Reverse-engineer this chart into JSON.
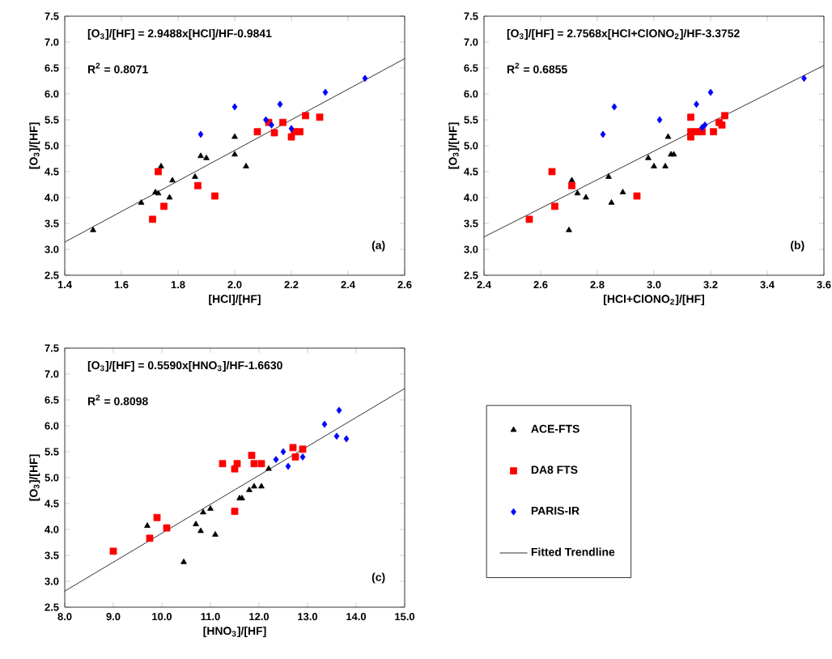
{
  "chart_data": [
    {
      "type": "scatter",
      "xlabel": "[HCl]/[HF]",
      "ylabel": "[O$_{3}$]/[HF]",
      "xlim": [
        1.4,
        2.6
      ],
      "ylim": [
        2.5,
        7.5
      ],
      "xticks": [
        1.4,
        1.6,
        1.8,
        {
          "value": 2.0,
          "label": "2.0"
        },
        2.2,
        2.4,
        2.6
      ],
      "yticks": [
        2.5,
        {
          "value": 3.0,
          "label": "3.0"
        },
        3.5,
        {
          "value": 4.0,
          "label": "4.0"
        },
        4.5,
        {
          "value": 5.0,
          "label": "5.0"
        },
        5.5,
        {
          "value": 6.0,
          "label": "6.0"
        },
        6.5,
        {
          "value": 7.0,
          "label": "7.0"
        },
        7.5
      ],
      "annotations": [
        "[O$_{3}$]/[HF] = 2.9488x[HCl]/HF-0.9841",
        "R$^{2}$ = 0.8071",
        "(a)"
      ],
      "series": [
        {
          "color": "#000000",
          "marker": "triangle",
          "x": [
            1.5,
            1.67,
            1.72,
            1.73,
            1.74,
            1.77,
            1.78,
            1.86,
            1.88,
            1.9,
            2.0,
            2.0,
            2.04
          ],
          "values": [
            3.37,
            3.9,
            4.1,
            4.08,
            4.6,
            4.0,
            4.33,
            4.4,
            4.8,
            4.76,
            4.83,
            5.17,
            4.6
          ]
        },
        {
          "color": "#ff0000",
          "marker": "square",
          "x": [
            1.71,
            1.73,
            1.75,
            1.87,
            1.93,
            2.08,
            2.12,
            2.14,
            2.17,
            2.2,
            2.21,
            2.23,
            2.25,
            2.3
          ],
          "values": [
            3.58,
            4.5,
            3.83,
            4.23,
            4.03,
            5.27,
            5.45,
            5.25,
            5.45,
            5.17,
            5.27,
            5.27,
            5.58,
            5.55
          ]
        },
        {
          "color": "#0000ff",
          "marker": "diamond",
          "x": [
            1.88,
            2.0,
            2.11,
            2.13,
            2.16,
            2.2,
            2.32,
            2.46
          ],
          "values": [
            5.22,
            5.75,
            5.5,
            5.4,
            5.8,
            5.33,
            6.03,
            6.3
          ]
        },
        {
          "type": "line",
          "color": "#000000",
          "marker": "none",
          "x": [
            1.4,
            2.6
          ],
          "values": [
            3.14,
            6.68
          ]
        }
      ]
    },
    {
      "type": "scatter",
      "xlabel": "[HCl+ClONO$_{2}$]/[HF]",
      "ylabel": "[O$_{3}$]/[HF]",
      "xlim": [
        2.4,
        3.6
      ],
      "ylim": [
        2.5,
        7.5
      ],
      "xticks": [
        2.4,
        2.6,
        2.8,
        {
          "value": 3.0,
          "label": "3.0"
        },
        3.2,
        3.4,
        3.6
      ],
      "yticks": [
        2.5,
        {
          "value": 3.0,
          "label": "3.0"
        },
        3.5,
        {
          "value": 4.0,
          "label": "4.0"
        },
        4.5,
        {
          "value": 5.0,
          "label": "5.0"
        },
        5.5,
        {
          "value": 6.0,
          "label": "6.0"
        },
        6.5,
        {
          "value": 7.0,
          "label": "7.0"
        },
        7.5
      ],
      "annotations": [
        "[O$_{3}$]/[HF] = 2.7568x[HCl+ClONO$_{2}$]/HF-3.3752",
        "R$^{2}$ = 0.6855",
        "(b)"
      ],
      "series": [
        {
          "color": "#000000",
          "marker": "triangle",
          "x": [
            2.7,
            2.71,
            2.73,
            2.76,
            2.84,
            2.85,
            2.89,
            2.98,
            3.0,
            3.04,
            3.05,
            3.06,
            3.07
          ],
          "values": [
            3.37,
            4.33,
            4.08,
            4.0,
            4.4,
            3.9,
            4.1,
            4.76,
            4.6,
            4.6,
            5.17,
            4.83,
            4.83
          ]
        },
        {
          "color": "#ff0000",
          "marker": "square",
          "x": [
            2.56,
            2.64,
            2.65,
            2.71,
            2.94,
            3.13,
            3.13,
            3.13,
            3.15,
            3.17,
            3.21,
            3.23,
            3.24,
            3.25
          ],
          "values": [
            3.58,
            4.5,
            3.83,
            4.23,
            4.03,
            5.55,
            5.27,
            5.17,
            5.27,
            5.27,
            5.27,
            5.45,
            5.4,
            5.58
          ]
        },
        {
          "color": "#0000ff",
          "marker": "diamond",
          "x": [
            2.82,
            2.86,
            3.02,
            3.15,
            3.17,
            3.18,
            3.2,
            3.53
          ],
          "values": [
            5.22,
            5.75,
            5.5,
            5.8,
            5.35,
            5.4,
            6.03,
            6.3
          ]
        },
        {
          "type": "line",
          "color": "#000000",
          "marker": "none",
          "x": [
            2.4,
            3.6
          ],
          "values": [
            3.24,
            6.55
          ]
        }
      ]
    },
    {
      "type": "scatter",
      "xlabel": "[HNO$_{3}$]/[HF]",
      "ylabel": "[O$_{3}$]/[HF]",
      "xlim": [
        8.0,
        15.0
      ],
      "ylim": [
        2.5,
        7.5
      ],
      "legend": "right",
      "xticks": [
        {
          "value": 8.0,
          "label": "8.0"
        },
        {
          "value": 9.0,
          "label": "9.0"
        },
        {
          "value": 10.0,
          "label": "10.0"
        },
        {
          "value": 11.0,
          "label": "11.0"
        },
        {
          "value": 12.0,
          "label": "12.0"
        },
        {
          "value": 13.0,
          "label": "13.0"
        },
        {
          "value": 14.0,
          "label": "14.0"
        },
        {
          "value": 15.0,
          "label": "15.0"
        }
      ],
      "yticks": [
        2.5,
        {
          "value": 3.0,
          "label": "3.0"
        },
        3.5,
        {
          "value": 4.0,
          "label": "4.0"
        },
        4.5,
        {
          "value": 5.0,
          "label": "5.0"
        },
        5.5,
        {
          "value": 6.0,
          "label": "6.0"
        },
        6.5,
        {
          "value": 7.0,
          "label": "7.0"
        },
        7.5
      ],
      "annotations": [
        "[O$_{3}$]/[HF] = 0.5590x[HNO$_{3}$]/HF-1.6630",
        "R$^{2}$ = 0.8098",
        "(c)"
      ],
      "series": [
        {
          "name": "ACE-FTS",
          "color": "#000000",
          "marker": "triangle",
          "x": [
            9.7,
            10.45,
            10.7,
            10.8,
            10.85,
            11.0,
            11.1,
            11.6,
            11.65,
            11.8,
            11.9,
            12.05,
            12.2
          ],
          "values": [
            4.07,
            3.37,
            4.1,
            3.97,
            4.33,
            4.4,
            3.9,
            4.6,
            4.6,
            4.76,
            4.83,
            4.83,
            5.17
          ]
        },
        {
          "name": "DA8 FTS",
          "color": "#ff0000",
          "marker": "square",
          "x": [
            9.0,
            9.75,
            9.9,
            10.1,
            11.25,
            11.5,
            11.5,
            11.55,
            11.85,
            11.9,
            12.05,
            12.7,
            12.75,
            12.9
          ],
          "values": [
            3.58,
            3.83,
            4.23,
            4.03,
            5.27,
            4.35,
            5.17,
            5.27,
            5.43,
            5.27,
            5.27,
            5.58,
            5.4,
            5.55
          ]
        },
        {
          "name": "PARIS-IR",
          "color": "#0000ff",
          "marker": "diamond",
          "x": [
            12.35,
            12.5,
            12.6,
            12.9,
            13.35,
            13.6,
            13.65,
            13.8
          ],
          "values": [
            5.35,
            5.5,
            5.22,
            5.4,
            6.03,
            5.8,
            6.3,
            5.75
          ]
        },
        {
          "name": "Fitted Trendline",
          "type": "line",
          "color": "#000000",
          "marker": "none",
          "x": [
            8.0,
            15.0
          ],
          "values": [
            2.81,
            6.72
          ]
        }
      ]
    }
  ]
}
